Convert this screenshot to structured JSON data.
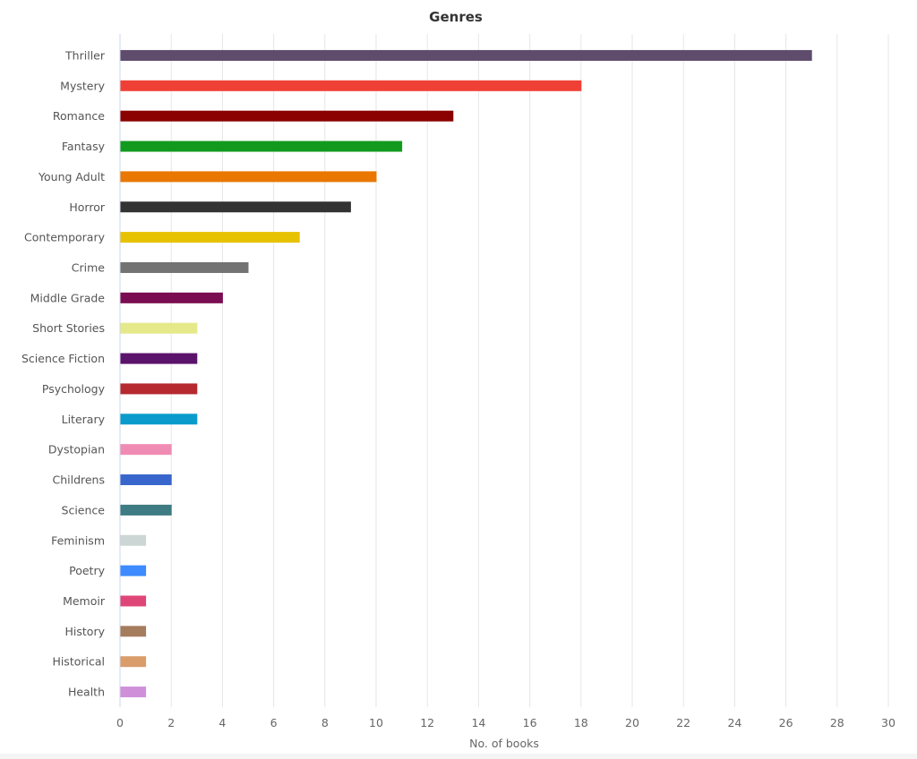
{
  "chart_data": {
    "type": "bar",
    "orientation": "horizontal",
    "title": "Genres",
    "xlabel": "No. of books",
    "ylabel": "",
    "xlim": [
      0,
      30
    ],
    "xticks": [
      0,
      2,
      4,
      6,
      8,
      10,
      12,
      14,
      16,
      18,
      20,
      22,
      24,
      26,
      28,
      30
    ],
    "grid": true,
    "categories": [
      "Thriller",
      "Mystery",
      "Romance",
      "Fantasy",
      "Young Adult",
      "Horror",
      "Contemporary",
      "Crime",
      "Middle Grade",
      "Short Stories",
      "Science Fiction",
      "Psychology",
      "Literary",
      "Dystopian",
      "Childrens",
      "Science",
      "Feminism",
      "Poetry",
      "Memoir",
      "History",
      "Historical",
      "Health"
    ],
    "values": [
      27,
      18,
      13,
      11,
      10,
      9,
      7,
      5,
      4,
      3,
      3,
      3,
      3,
      2,
      2,
      2,
      1,
      1,
      1,
      1,
      1,
      1
    ],
    "colors": [
      "#5f4b6b",
      "#f04035",
      "#8b0000",
      "#129a1f",
      "#e97700",
      "#333333",
      "#e6c200",
      "#737373",
      "#7a0d52",
      "#e5e98a",
      "#5b136b",
      "#b5292f",
      "#0a9bcc",
      "#f08cb4",
      "#3966cc",
      "#3e7b82",
      "#ccd6d4",
      "#3d8bff",
      "#df4678",
      "#a67c5e",
      "#da9c6a",
      "#cf90d9"
    ]
  }
}
